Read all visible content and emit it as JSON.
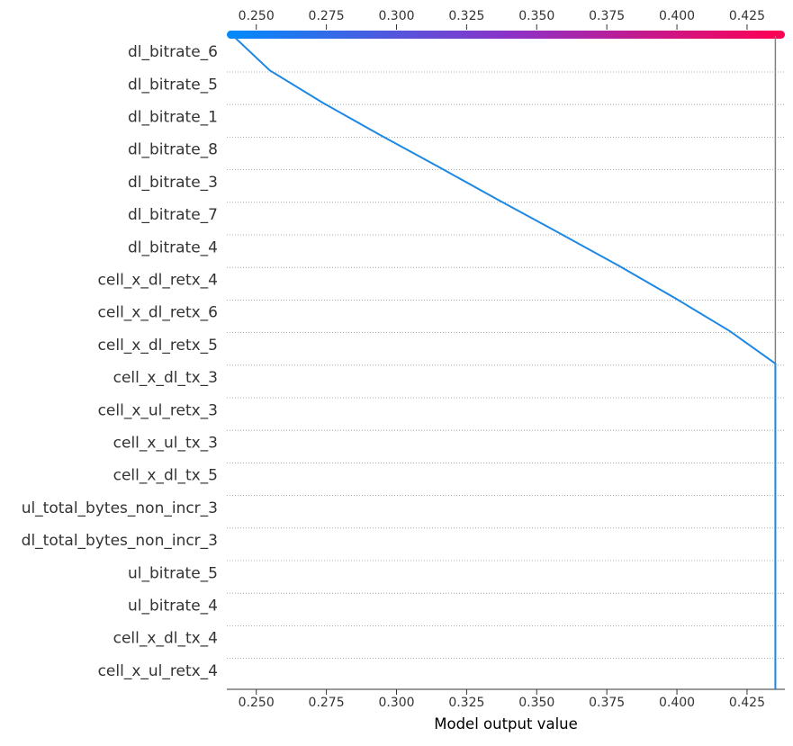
{
  "chart_data": {
    "type": "line",
    "title": "",
    "xlabel": "Model output value",
    "ylabel": "",
    "xlim": [
      0.2395,
      0.4385
    ],
    "x_ticks": [
      "0.250",
      "0.275",
      "0.300",
      "0.325",
      "0.350",
      "0.375",
      "0.400",
      "0.425"
    ],
    "x_tick_values": [
      0.25,
      0.275,
      0.3,
      0.325,
      0.35,
      0.375,
      0.4,
      0.425
    ],
    "top_colorbar": true,
    "base_value": 0.4351,
    "features_top_to_bottom": [
      "dl_bitrate_6",
      "dl_bitrate_5",
      "dl_bitrate_1",
      "dl_bitrate_8",
      "dl_bitrate_3",
      "dl_bitrate_7",
      "dl_bitrate_4",
      "cell_x_dl_retx_4",
      "cell_x_dl_retx_6",
      "cell_x_dl_retx_5",
      "cell_x_dl_tx_3",
      "cell_x_ul_retx_3",
      "cell_x_ul_tx_3",
      "cell_x_dl_tx_5",
      "ul_total_bytes_non_incr_3",
      "dl_total_bytes_non_incr_3",
      "ul_bitrate_5",
      "ul_bitrate_4",
      "cell_x_dl_tx_4",
      "cell_x_ul_retx_4"
    ],
    "series": [
      {
        "color": "#1e88e5",
        "points": [
          {
            "level": 0,
            "x": 0.4351
          },
          {
            "level": 1,
            "x": 0.4351
          },
          {
            "level": 2,
            "x": 0.4351
          },
          {
            "level": 3,
            "x": 0.4351
          },
          {
            "level": 4,
            "x": 0.4351
          },
          {
            "level": 5,
            "x": 0.4351
          },
          {
            "level": 6,
            "x": 0.4351
          },
          {
            "level": 7,
            "x": 0.4351
          },
          {
            "level": 8,
            "x": 0.4351
          },
          {
            "level": 9,
            "x": 0.4351
          },
          {
            "level": 10,
            "x": 0.4351
          },
          {
            "level": 11,
            "x": 0.4188
          },
          {
            "level": 12,
            "x": 0.3995
          },
          {
            "level": 13,
            "x": 0.3793
          },
          {
            "level": 14,
            "x": 0.3582
          },
          {
            "level": 15,
            "x": 0.3368
          },
          {
            "level": 16,
            "x": 0.3158
          },
          {
            "level": 17,
            "x": 0.2945
          },
          {
            "level": 18,
            "x": 0.2738
          },
          {
            "level": 19,
            "x": 0.2548
          },
          {
            "level": 20,
            "x": 0.2425
          }
        ]
      }
    ],
    "colormap": [
      "#008bfb",
      "#8b33c8",
      "#ff0052"
    ]
  }
}
